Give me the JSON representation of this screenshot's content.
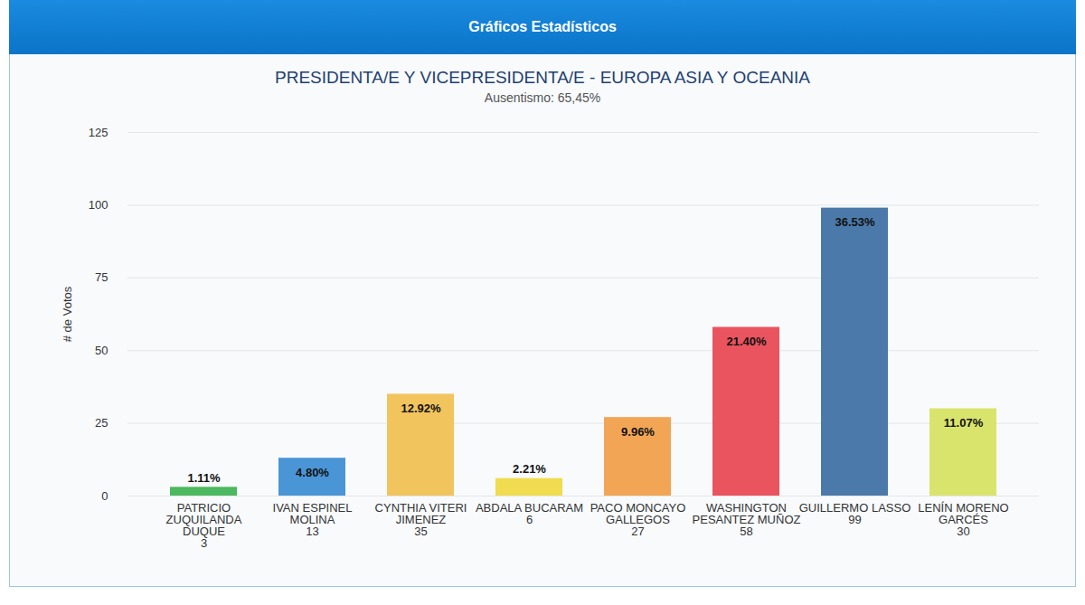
{
  "page_header": "Gráficos Estadísticos",
  "chart_data": {
    "type": "bar",
    "title": "PRESIDENTA/E Y VICEPRESIDENTA/E - EUROPA ASIA Y OCEANIA",
    "subtitle": "Ausentismo: 65,45%",
    "y_label": "# de Votos",
    "categories": [
      "PATRICIO ZUQUILANDA DUQUE",
      "IVAN ESPINEL MOLINA",
      "CYNTHIA VITERI JIMENEZ",
      "ABDALA BUCARAM",
      "PACO MONCAYO GALLEGOS",
      "WASHINGTON PESANTEZ MUÑOZ",
      "GUILLERMO LASSO",
      "LENÍN MORENO GARCÉS"
    ],
    "values": [
      3,
      13,
      35,
      6,
      27,
      58,
      99,
      30
    ],
    "share_labels": [
      "1.11%",
      "4.80%",
      "12.92%",
      "2.21%",
      "9.96%",
      "21.40%",
      "36.53%",
      "11.07%"
    ],
    "colors": [
      "#4cb860",
      "#4a95d6",
      "#f2c45e",
      "#f0dc4e",
      "#f2a555",
      "#e9545f",
      "#4a79aa",
      "#d9e46c"
    ],
    "ylim": [
      0,
      125
    ],
    "yticks": [
      0,
      25,
      50,
      75,
      100,
      125
    ],
    "grid": true
  }
}
